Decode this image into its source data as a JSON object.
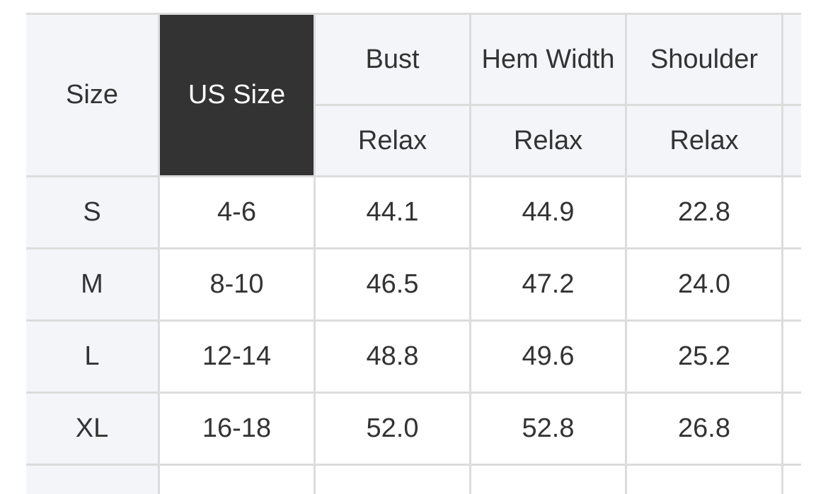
{
  "table": {
    "headers": {
      "size": "Size",
      "us_size": "US Size",
      "columns": [
        "Bust",
        "Hem Width",
        "Shoulder"
      ],
      "sub": [
        "Relax",
        "Relax",
        "Relax"
      ]
    },
    "rows": [
      {
        "size": "S",
        "us": "4-6",
        "values": [
          "44.1",
          "44.9",
          "22.8"
        ]
      },
      {
        "size": "M",
        "us": "8-10",
        "values": [
          "46.5",
          "47.2",
          "24.0"
        ]
      },
      {
        "size": "L",
        "us": "12-14",
        "values": [
          "48.8",
          "49.6",
          "25.2"
        ]
      },
      {
        "size": "XL",
        "us": "16-18",
        "values": [
          "52.0",
          "52.8",
          "26.8"
        ]
      }
    ],
    "colors": {
      "header_bg": "#f4f5f9",
      "highlight_bg": "#333333",
      "border": "#dcdcdc",
      "text": "#333333"
    }
  }
}
